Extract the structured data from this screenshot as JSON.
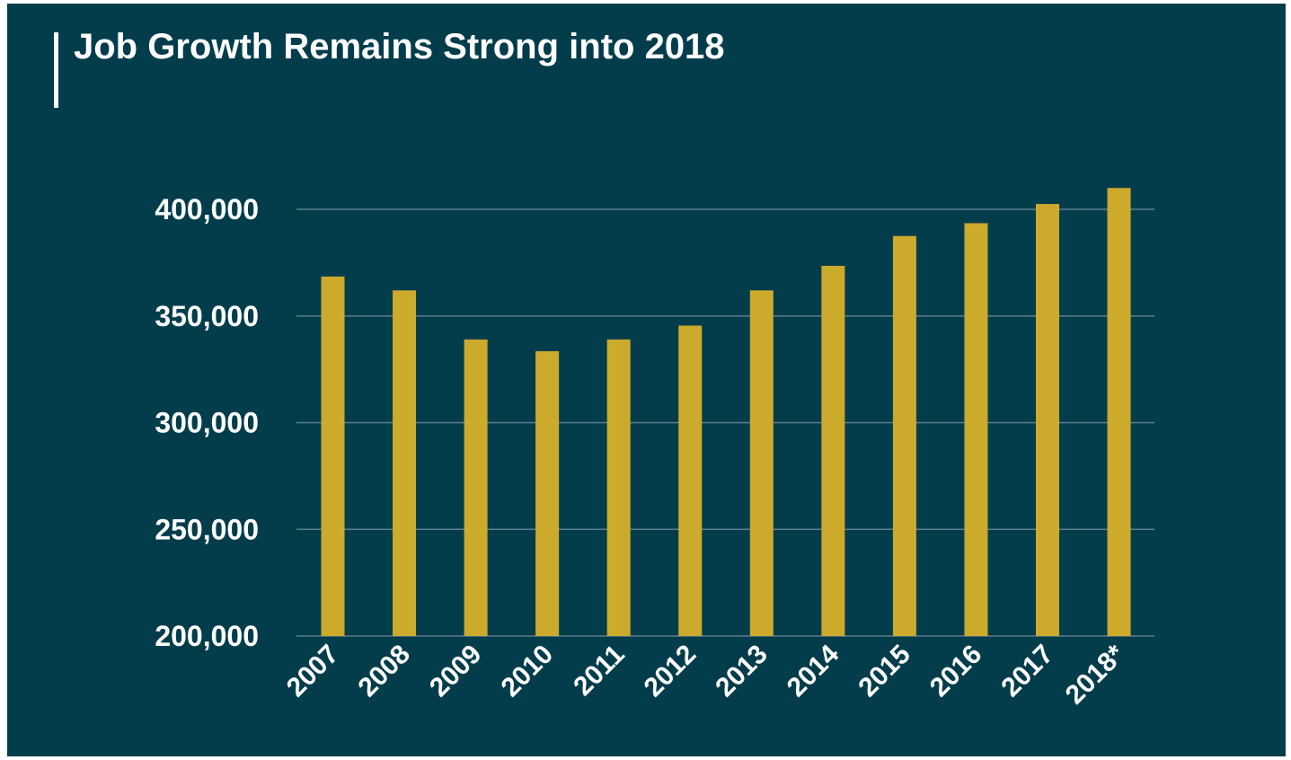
{
  "title": "Job Growth Remains Strong into 2018",
  "colors": {
    "background": "#033d4c",
    "bar": "#ccaa2c",
    "gridline": "#5e7f88",
    "text": "#ffffff"
  },
  "chart_data": {
    "type": "bar",
    "title": "Job Growth Remains Strong into 2018",
    "xlabel": "",
    "ylabel": "",
    "categories": [
      "2007",
      "2008",
      "2009",
      "2010",
      "2011",
      "2012",
      "2013",
      "2014",
      "2015",
      "2016",
      "2017",
      "2018*"
    ],
    "values": [
      368500,
      362000,
      339000,
      333500,
      339000,
      345500,
      362000,
      373500,
      387500,
      393500,
      402500,
      410000
    ],
    "ylim": [
      200000,
      410000
    ],
    "yticks": [
      200000,
      250000,
      300000,
      350000,
      400000
    ],
    "ytick_labels": [
      "200,000",
      "250,000",
      "300,000",
      "350,000",
      "400,000"
    ],
    "grid": true,
    "legend": "none"
  }
}
